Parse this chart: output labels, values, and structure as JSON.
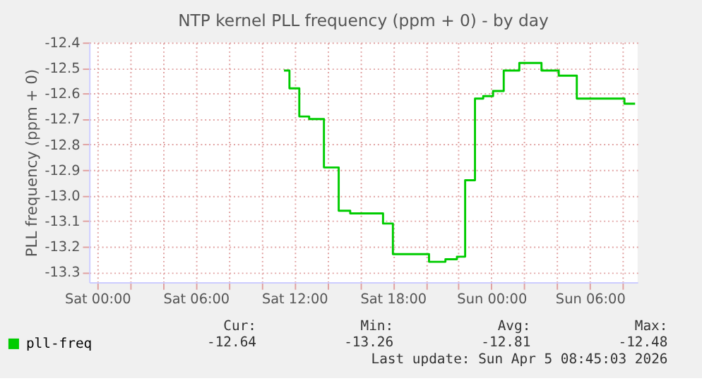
{
  "chart_data": {
    "type": "step",
    "title": "NTP kernel PLL frequency (ppm + 0) - by day",
    "ylabel": "PLL frequency (ppm + 0)",
    "series": [
      {
        "name": "pll-freq",
        "color": "#00cc00",
        "x": [
          "2026-04-04T11:22",
          "2026-04-04T11:42",
          "2026-04-04T12:18",
          "2026-04-04T12:54",
          "2026-04-04T13:48",
          "2026-04-04T14:42",
          "2026-04-04T15:24",
          "2026-04-04T17:24",
          "2026-04-04T18:00",
          "2026-04-04T20:12",
          "2026-04-04T21:12",
          "2026-04-04T21:54",
          "2026-04-04T22:24",
          "2026-04-04T23:00",
          "2026-04-04T23:30",
          "2026-04-05T00:06",
          "2026-04-05T00:45",
          "2026-04-05T01:42",
          "2026-04-05T03:03",
          "2026-04-05T04:06",
          "2026-04-05T05:12",
          "2026-04-05T08:06",
          "2026-04-05T08:45"
        ],
        "values": [
          -12.51,
          -12.58,
          -12.69,
          -12.7,
          -12.89,
          -13.06,
          -13.07,
          -13.11,
          -13.23,
          -13.26,
          -13.25,
          -13.24,
          -12.94,
          -12.62,
          -12.61,
          -12.59,
          -12.51,
          -12.48,
          -12.51,
          -12.53,
          -12.62,
          -12.64,
          -12.64
        ]
      }
    ],
    "xlim": [
      "2026-04-03T23:30",
      "2026-04-05T08:54"
    ],
    "xticks": [
      {
        "value": "2026-04-04T00:00",
        "label": "Sat 00:00"
      },
      {
        "value": "2026-04-04T02:00",
        "label": null
      },
      {
        "value": "2026-04-04T04:00",
        "label": null
      },
      {
        "value": "2026-04-04T06:00",
        "label": "Sat 06:00"
      },
      {
        "value": "2026-04-04T08:00",
        "label": null
      },
      {
        "value": "2026-04-04T10:00",
        "label": null
      },
      {
        "value": "2026-04-04T12:00",
        "label": "Sat 12:00"
      },
      {
        "value": "2026-04-04T14:00",
        "label": null
      },
      {
        "value": "2026-04-04T16:00",
        "label": null
      },
      {
        "value": "2026-04-04T18:00",
        "label": "Sat 18:00"
      },
      {
        "value": "2026-04-04T20:00",
        "label": null
      },
      {
        "value": "2026-04-04T22:00",
        "label": null
      },
      {
        "value": "2026-04-05T00:00",
        "label": "Sun 00:00"
      },
      {
        "value": "2026-04-05T02:00",
        "label": null
      },
      {
        "value": "2026-04-05T04:00",
        "label": null
      },
      {
        "value": "2026-04-05T06:00",
        "label": "Sun 06:00"
      },
      {
        "value": "2026-04-05T08:00",
        "label": null
      }
    ],
    "ylim": [
      -13.34,
      -12.4
    ],
    "yticks": [
      -12.4,
      -12.5,
      -12.6,
      -12.7,
      -12.8,
      -12.9,
      {
        "value": -13.0,
        "label": "-13.0"
      },
      -13.1,
      -13.2,
      -13.3
    ],
    "grid": true,
    "line_style": "solid",
    "legend": "bottom left",
    "annotations": [
      "Cur:",
      "Min:",
      "Avg:",
      "Max:",
      "-12.64",
      "-13.26",
      "-12.81",
      "-12.48",
      "Last update: Sun Apr  5 08:45:03 2026"
    ]
  }
}
